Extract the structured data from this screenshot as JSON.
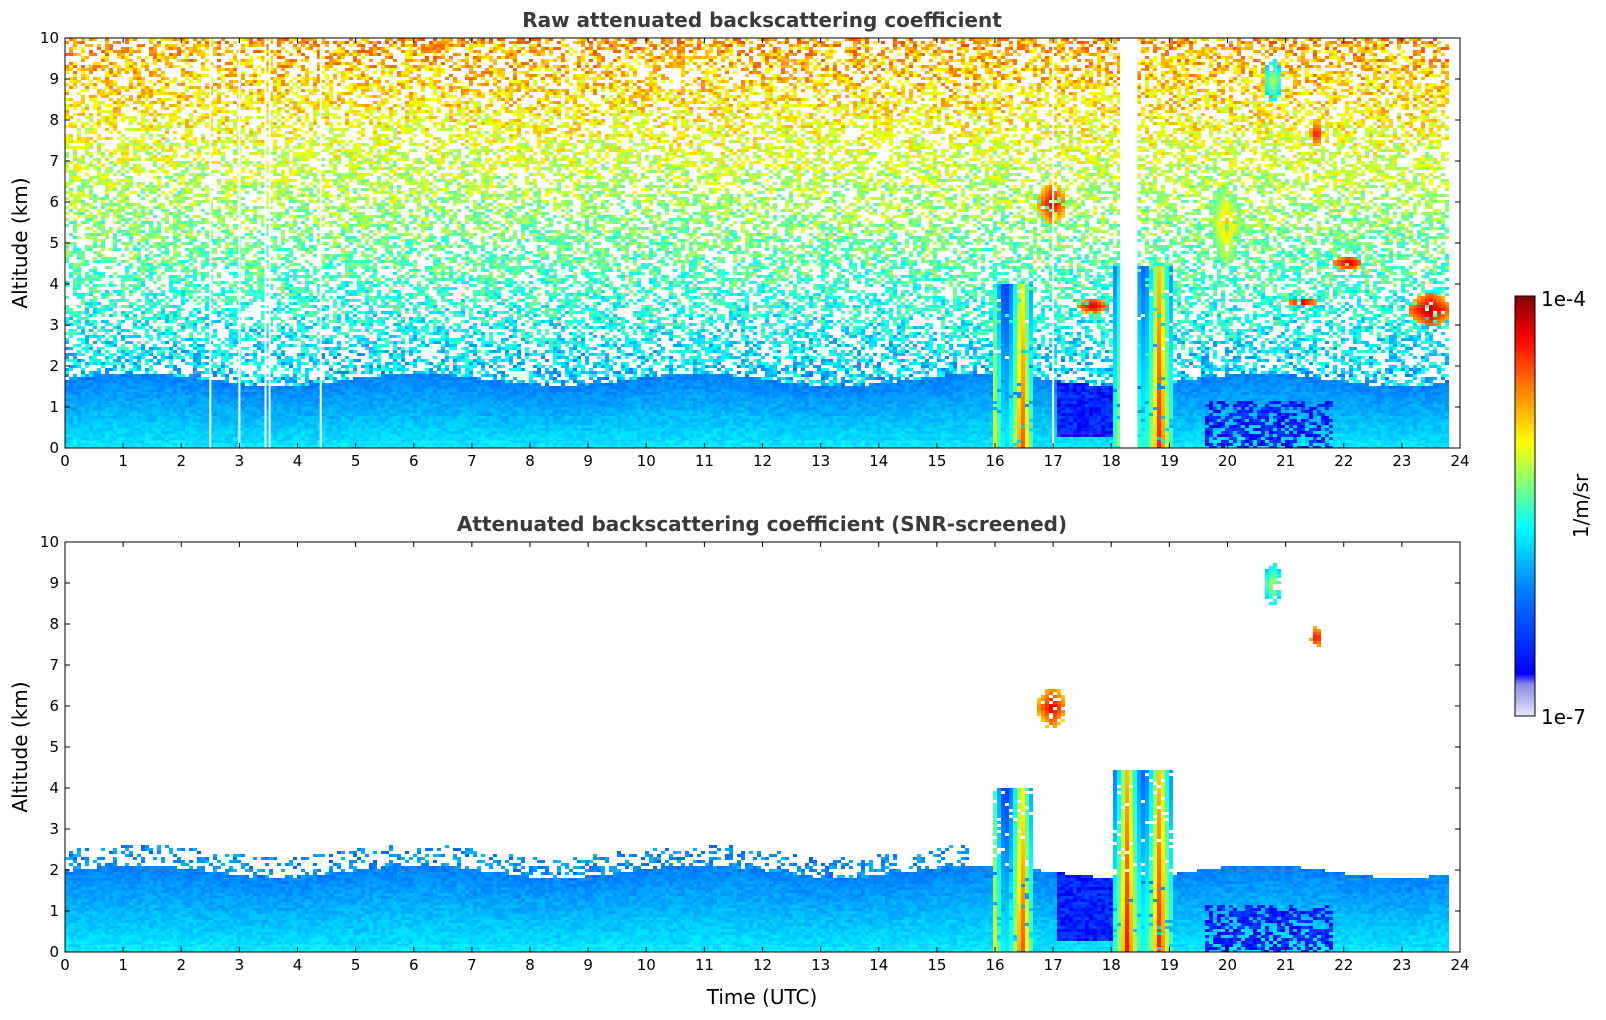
{
  "colors": {
    "jet_stops": [
      "#00007f",
      "#0000ff",
      "#007fff",
      "#00ffff",
      "#7fff7f",
      "#ffff00",
      "#ff7f00",
      "#ff0000",
      "#7f0000"
    ],
    "low_end": [
      "#e8e8ff",
      "#c8c8f4",
      "#a8a8ee",
      "#8c8ce8"
    ],
    "title_color": "#3a3a3a"
  },
  "colorbar": {
    "max_label": "1e-4",
    "min_label": "1e-7",
    "unit_label": "1/m/sr",
    "scale": "log",
    "range": [
      1e-07,
      0.0001
    ]
  },
  "chart_data": [
    {
      "type": "heatmap",
      "title": "Raw attenuated backscattering coefficient",
      "xlabel": "",
      "ylabel": "Altitude (km)",
      "xlim": [
        0,
        24
      ],
      "ylim": [
        0,
        10
      ],
      "x_ticks": [
        "0",
        "1",
        "2",
        "3",
        "4",
        "5",
        "6",
        "7",
        "8",
        "9",
        "10",
        "11",
        "12",
        "13",
        "14",
        "15",
        "16",
        "17",
        "18",
        "19",
        "20",
        "21",
        "22",
        "23",
        "24"
      ],
      "y_ticks": [
        "0",
        "1",
        "2",
        "3",
        "4",
        "5",
        "6",
        "7",
        "8",
        "9",
        "10"
      ],
      "grid": false,
      "data_end_time": 23.8,
      "gaps_utc": [
        2.5,
        3.0,
        3.45,
        3.52,
        4.4,
        17.0,
        [
          18.15,
          18.45
        ]
      ],
      "features": [
        {
          "kind": "boundary_layer",
          "x": [
            0,
            15.5
          ],
          "top_km": 1.7,
          "value": 3e-07
        },
        {
          "kind": "noise_field",
          "x": [
            0,
            23.8
          ],
          "y": [
            1.7,
            10
          ],
          "value": 1e-06
        },
        {
          "kind": "precipitation_column",
          "x": [
            15.9,
            16.6
          ],
          "y": [
            0,
            4
          ],
          "value": 3e-05
        },
        {
          "kind": "precipitation_column",
          "x": [
            18.0,
            19.0
          ],
          "y": [
            0,
            4.5
          ],
          "value": 4e-05
        },
        {
          "kind": "cloud",
          "x": [
            16.7,
            17.2
          ],
          "y": [
            5.5,
            6.5
          ],
          "value": 5e-05
        },
        {
          "kind": "cloud",
          "x": [
            17.4,
            17.9
          ],
          "y": [
            3.3,
            3.7
          ],
          "value": 6e-05
        },
        {
          "kind": "cloud",
          "x": [
            19.7,
            20.2
          ],
          "y": [
            4.5,
            6.5
          ],
          "value": 1e-05
        },
        {
          "kind": "cloud",
          "x": [
            20.6,
            20.9
          ],
          "y": [
            8.5,
            9.5
          ],
          "value": 4e-06
        },
        {
          "kind": "cloud",
          "x": [
            21.4,
            21.6
          ],
          "y": [
            7.4,
            8.0
          ],
          "value": 5e-05
        },
        {
          "kind": "cloud",
          "x": [
            21.8,
            22.3
          ],
          "y": [
            4.4,
            4.7
          ],
          "value": 7e-05
        },
        {
          "kind": "cloud",
          "x": [
            21.0,
            21.5
          ],
          "y": [
            3.5,
            3.7
          ],
          "value": 7e-05
        },
        {
          "kind": "cloud",
          "x": [
            23.1,
            23.8
          ],
          "y": [
            3.0,
            3.8
          ],
          "value": 7e-05
        }
      ]
    },
    {
      "type": "heatmap",
      "title": "Attenuated backscattering coefficient (SNR-screened)",
      "xlabel": "Time (UTC)",
      "ylabel": "Altitude (km)",
      "xlim": [
        0,
        24
      ],
      "ylim": [
        0,
        10
      ],
      "x_ticks": [
        "0",
        "1",
        "2",
        "3",
        "4",
        "5",
        "6",
        "7",
        "8",
        "9",
        "10",
        "11",
        "12",
        "13",
        "14",
        "15",
        "16",
        "17",
        "18",
        "19",
        "20",
        "21",
        "22",
        "23",
        "24"
      ],
      "y_ticks": [
        "0",
        "1",
        "2",
        "3",
        "4",
        "5",
        "6",
        "7",
        "8",
        "9",
        "10"
      ],
      "grid": false,
      "data_end_time": 23.8,
      "screened_above_boundary_layer": true,
      "features": [
        {
          "kind": "boundary_layer",
          "x": [
            0,
            15.5
          ],
          "top_km": 2.0,
          "value": 3e-07
        },
        {
          "kind": "precipitation_column",
          "x": [
            15.9,
            16.6
          ],
          "y": [
            0,
            4
          ],
          "value": 3e-05
        },
        {
          "kind": "precipitation_column",
          "x": [
            18.0,
            19.0
          ],
          "y": [
            0,
            4.5
          ],
          "value": 4e-05
        },
        {
          "kind": "cloud",
          "x": [
            16.7,
            17.2
          ],
          "y": [
            5.5,
            6.5
          ],
          "value": 5e-05
        },
        {
          "kind": "cloud",
          "x": [
            21.4,
            21.6
          ],
          "y": [
            7.4,
            8.0
          ],
          "value": 5e-05
        },
        {
          "kind": "cloud",
          "x": [
            20.6,
            20.9
          ],
          "y": [
            8.5,
            9.5
          ],
          "value": 4e-06
        }
      ]
    }
  ]
}
